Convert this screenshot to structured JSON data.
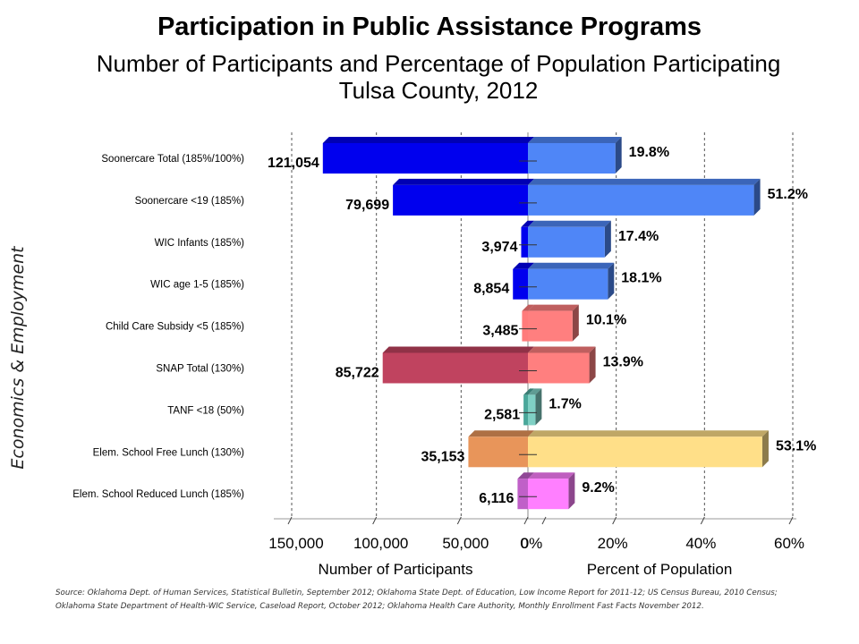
{
  "title": "Participation in Public Assistance Programs",
  "subtitle_line1": "Number of Participants and Percentage of Population Participating",
  "subtitle_line2": "Tulsa County, 2012",
  "side_label": "Economics & Employment",
  "source": "Source: Oklahoma Dept. of Human Services, Statistical Bulletin, September 2012; Oklahoma State Dept. of Education, Low Income Report for 2011-12; US Census Bureau, 2010 Census; Oklahoma State Department of Health-WIC Service, Caseload Report, October 2012; Oklahoma Health Care Authority, Monthly Enrollment Fast Facts November 2012.",
  "chart_data": {
    "type": "bar",
    "orientation": "horizontal",
    "categories": [
      "Soonercare Total (185%/100%)",
      "Soonercare <19 (185%)",
      "WIC Infants (185%)",
      "WIC age 1-5 (185%)",
      "Child Care Subsidy <5 (185%)",
      "SNAP Total (130%)",
      "TANF <18 (50%)",
      "Elem. School Free Lunch (130%)",
      "Elem. School Reduced Lunch (185%)"
    ],
    "series": [
      {
        "name": "Number of Participants",
        "values": [
          121054,
          79699,
          3974,
          8854,
          3485,
          85722,
          2581,
          35153,
          6116
        ],
        "labels": [
          "121,054",
          "79,699",
          "3,974",
          "8,854",
          "3,485",
          "85,722",
          "2,581",
          "35,153",
          "6,116"
        ],
        "axis_max": 150000,
        "ticks": [
          150000,
          100000,
          50000,
          0
        ],
        "tick_labels": [
          "150,000",
          "100,000",
          "50,000",
          "0"
        ],
        "xlabel": "Number of Participants"
      },
      {
        "name": "Percent of Population",
        "values": [
          19.8,
          51.2,
          17.4,
          18.1,
          10.1,
          13.9,
          1.7,
          53.1,
          9.2
        ],
        "labels": [
          "19.8%",
          "51.2%",
          "17.4%",
          "18.1%",
          "10.1%",
          "13.9%",
          "1.7%",
          "53.1%",
          "9.2%"
        ],
        "axis_max": 60,
        "ticks": [
          0,
          20,
          40,
          60
        ],
        "tick_labels": [
          "0%",
          "20%",
          "40%",
          "60%"
        ],
        "xlabel": "Percent of Population"
      }
    ],
    "colors": {
      "left": [
        "#0000ee",
        "#0000ee",
        "#0000ee",
        "#0000ee",
        "#ff7b7b",
        "#c0435f",
        "#4aa79a",
        "#e8955a",
        "#c060c8"
      ],
      "right": [
        "#4f86f7",
        "#4f86f7",
        "#4f86f7",
        "#4f86f7",
        "#ff7f7f",
        "#ff7f7f",
        "#7fd0c4",
        "#ffdf88",
        "#ff7fff"
      ]
    },
    "grid": "vertical dashed",
    "style": "3d"
  }
}
